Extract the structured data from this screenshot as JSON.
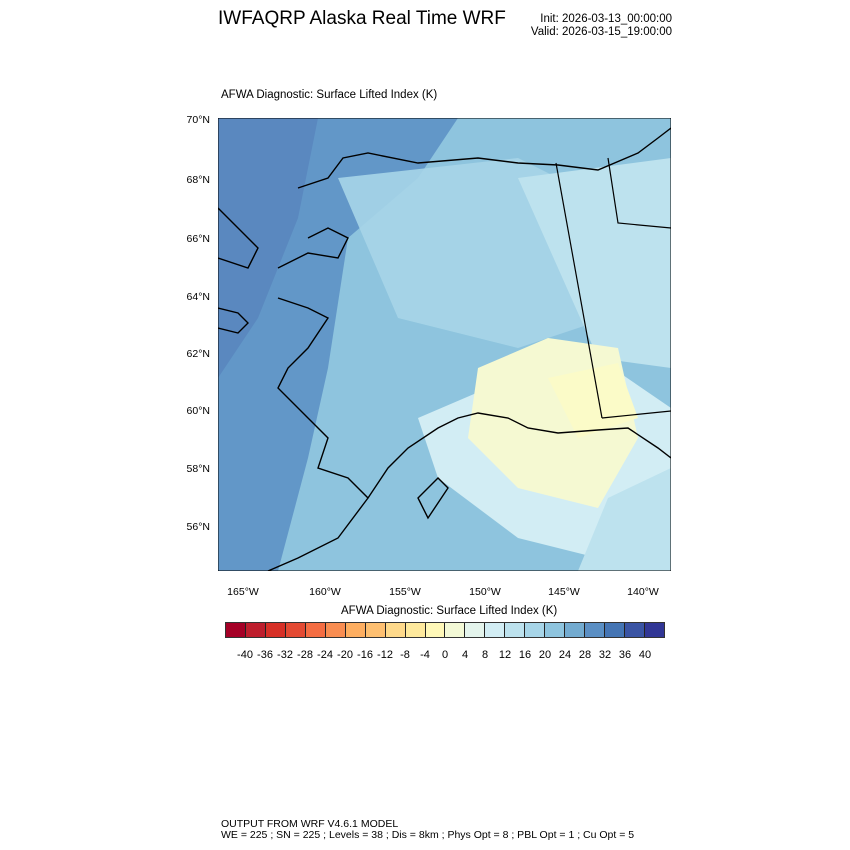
{
  "header": {
    "title": "IWFAQRP Alaska Real Time WRF",
    "init": "Init: 2026-03-13_00:00:00",
    "valid": "Valid: 2026-03-15_19:00:00"
  },
  "map": {
    "subtitle": "AFWA Diagnostic: Surface Lifted Index   (K)",
    "lat_labels": [
      "70°N",
      "68°N",
      "66°N",
      "64°N",
      "62°N",
      "60°N",
      "58°N",
      "56°N"
    ],
    "lon_labels": [
      "165°W",
      "160°W",
      "155°W",
      "150°W",
      "145°W",
      "140°W"
    ]
  },
  "colorbar": {
    "title": "AFWA Diagnostic: Surface Lifted Index  (K)",
    "labels": [
      "-40",
      "-36",
      "-32",
      "-28",
      "-24",
      "-20",
      "-16",
      "-12",
      "-8",
      "-4",
      "0",
      "4",
      "8",
      "12",
      "16",
      "20",
      "24",
      "28",
      "32",
      "36",
      "40"
    ],
    "colors": [
      "#a50026",
      "#be1e2d",
      "#d73027",
      "#e34a33",
      "#f46d43",
      "#f88d52",
      "#fdae61",
      "#fdbf71",
      "#fed98b",
      "#fee99d",
      "#fff8b8",
      "#f3f9d6",
      "#e4f4ec",
      "#d2edf4",
      "#bde2ee",
      "#a7d5e8",
      "#8ec4de",
      "#73abd0",
      "#5b8fc4",
      "#4575b4",
      "#3a54a4",
      "#313695"
    ]
  },
  "footer": {
    "line1": "OUTPUT FROM WRF V4.6.1 MODEL",
    "line2": "WE = 225 ; SN = 225 ; Levels = 38 ; Dis = 8km ; Phys Opt = 8 ; PBL Opt = 1 ; Cu Opt = 5"
  }
}
